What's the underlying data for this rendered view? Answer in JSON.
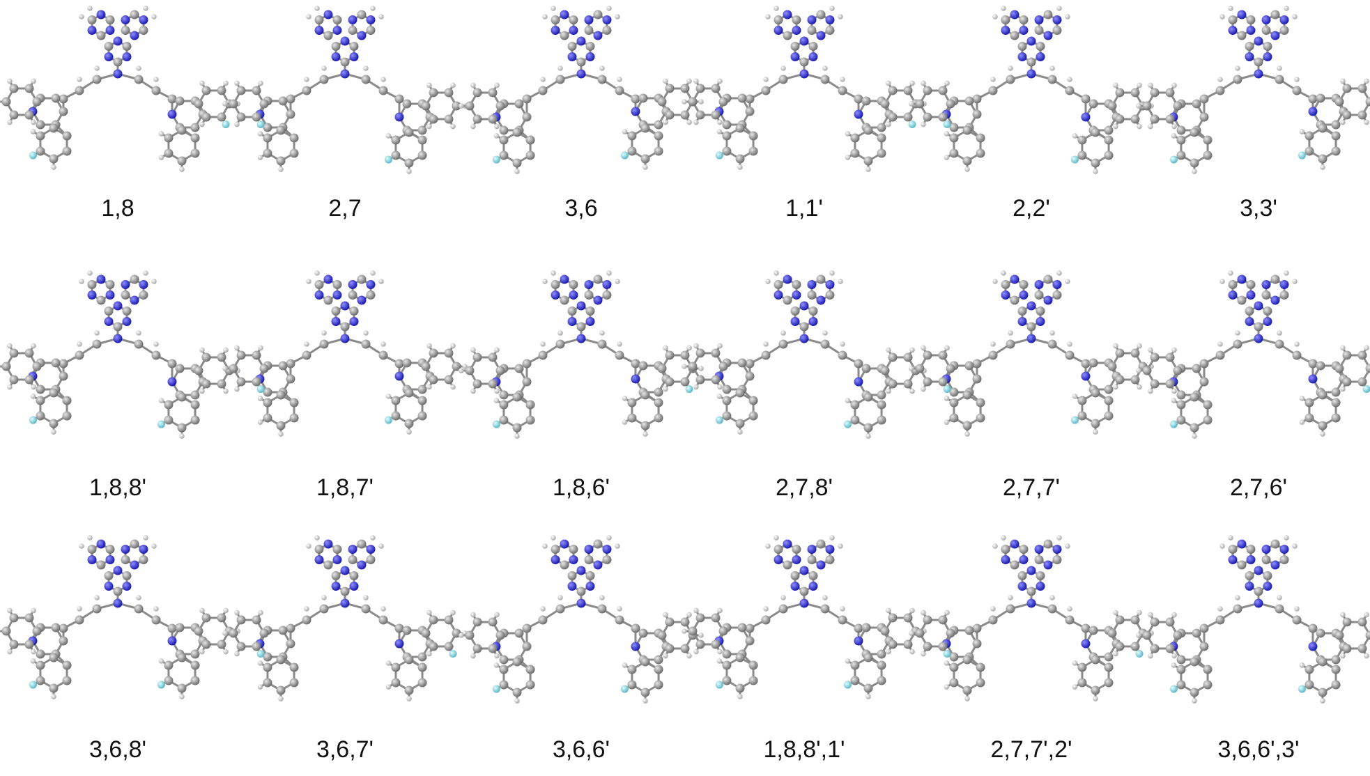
{
  "figure": {
    "labels": [
      "1,8",
      "2,7",
      "3,6",
      "1,1'",
      "2,2'",
      "3,3'",
      "1,8,8'",
      "1,8,7'",
      "1,8,6'",
      "2,7,8'",
      "2,7,7'",
      "2,7,6'",
      "3,6,8'",
      "3,6,7'",
      "3,6,6'",
      "1,8,8',1'",
      "2,7,7',2'",
      "3,6,6',3'"
    ]
  }
}
